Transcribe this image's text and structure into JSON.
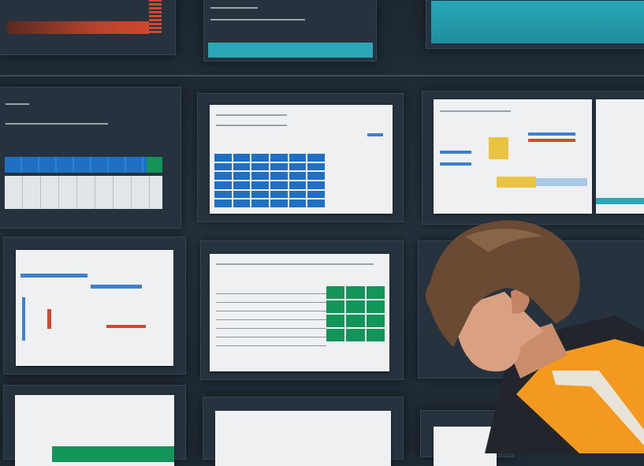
{
  "scene": {
    "description_colors": {
      "background": "#1f2a33",
      "panel": "#26333e",
      "document": "#eef0f1",
      "accent_blue": "#1f6fc4",
      "accent_green": "#13955a",
      "accent_teal": "#2aa8b8",
      "accent_red": "#d2492f",
      "accent_yellow": "#e9c341",
      "vest_orange": "#f39a1e",
      "hair": "#6b4a33",
      "jacket": "#22252c"
    }
  }
}
